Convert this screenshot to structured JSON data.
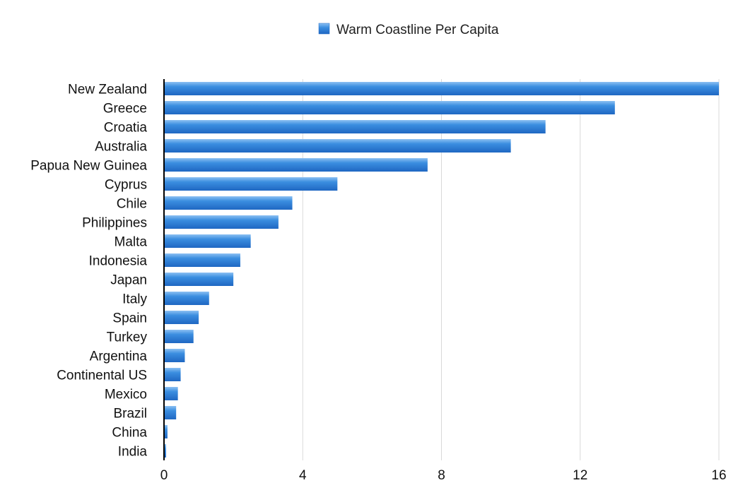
{
  "chart_data": {
    "type": "bar",
    "orientation": "horizontal",
    "title": "",
    "xlabel": "",
    "ylabel": "",
    "xlim": [
      0,
      16
    ],
    "x_ticks": [
      "0",
      "4",
      "8",
      "12",
      "16"
    ],
    "grid": true,
    "legend_position": "top-center",
    "categories": [
      "New Zealand",
      "Greece",
      "Croatia",
      "Australia",
      "Papua New Guinea",
      "Cyprus",
      "Chile",
      "Philippines",
      "Malta",
      "Indonesia",
      "Japan",
      "Italy",
      "Spain",
      "Turkey",
      "Argentina",
      "Continental US",
      "Mexico",
      "Brazil",
      "China",
      "India"
    ],
    "series": [
      {
        "name": "Warm Coastline Per Capita",
        "color": "#2f7fd6",
        "values": [
          16,
          13,
          11,
          10,
          7.6,
          5,
          3.7,
          3.3,
          2.5,
          2.2,
          2.0,
          1.3,
          1.0,
          0.85,
          0.6,
          0.48,
          0.4,
          0.35,
          0.1,
          0.06
        ]
      }
    ]
  }
}
